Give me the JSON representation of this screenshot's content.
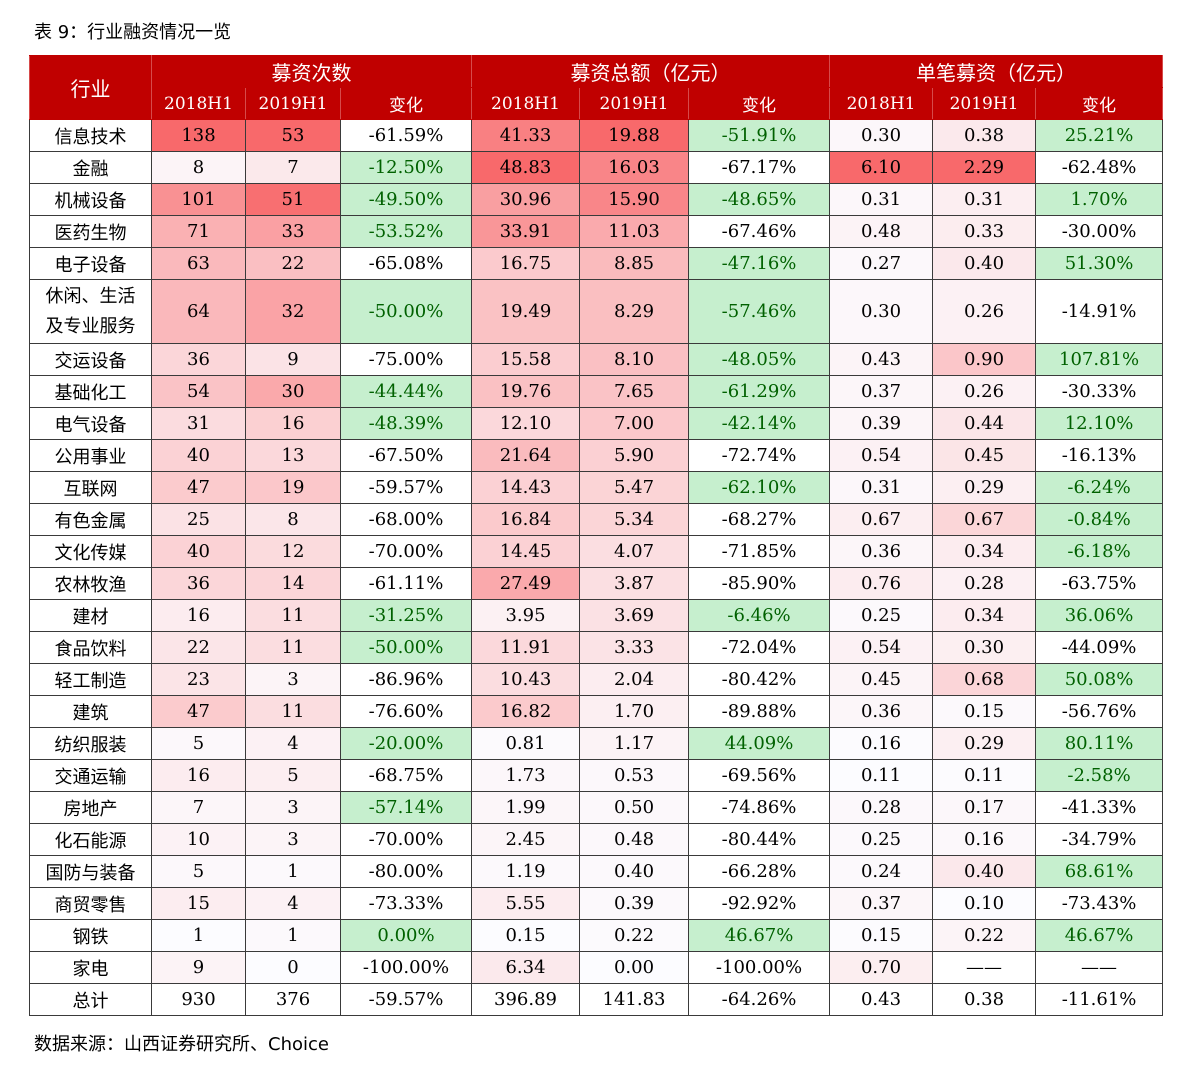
{
  "title": "表 9：行业融资情况一览",
  "source": "数据来源：山西证券研究所、Choice",
  "colors": {
    "header": "#C00000",
    "heat_max": "#F8696B",
    "heat_min": "#FCFCFF",
    "good_fill": "#C6EFCE",
    "good_text": "#006100"
  },
  "header": {
    "industry": "行业",
    "groups": [
      "募资次数",
      "募资总额（亿元）",
      "单笔募资（亿元）"
    ],
    "sub": [
      "2018H1",
      "2019H1",
      "变化",
      "2018H1",
      "2019H1",
      "变化",
      "2018H1",
      "2019H1",
      "变化"
    ]
  },
  "rows": [
    [
      "信息技术",
      "138",
      "53",
      "-61.59%",
      "41.33",
      "19.88",
      "-51.91%",
      "0.30",
      "0.38",
      "25.21%"
    ],
    [
      "金融",
      "8",
      "7",
      "-12.50%",
      "48.83",
      "16.03",
      "-67.17%",
      "6.10",
      "2.29",
      "-62.48%"
    ],
    [
      "机械设备",
      "101",
      "51",
      "-49.50%",
      "30.96",
      "15.90",
      "-48.65%",
      "0.31",
      "0.31",
      "1.70%"
    ],
    [
      "医药生物",
      "71",
      "33",
      "-53.52%",
      "33.91",
      "11.03",
      "-67.46%",
      "0.48",
      "0.33",
      "-30.00%"
    ],
    [
      "电子设备",
      "63",
      "22",
      "-65.08%",
      "16.75",
      "8.85",
      "-47.16%",
      "0.27",
      "0.40",
      "51.30%"
    ],
    [
      "休闲、生活及专业服务",
      "64",
      "32",
      "-50.00%",
      "19.49",
      "8.29",
      "-57.46%",
      "0.30",
      "0.26",
      "-14.91%"
    ],
    [
      "交运设备",
      "36",
      "9",
      "-75.00%",
      "15.58",
      "8.10",
      "-48.05%",
      "0.43",
      "0.90",
      "107.81%"
    ],
    [
      "基础化工",
      "54",
      "30",
      "-44.44%",
      "19.76",
      "7.65",
      "-61.29%",
      "0.37",
      "0.26",
      "-30.33%"
    ],
    [
      "电气设备",
      "31",
      "16",
      "-48.39%",
      "12.10",
      "7.00",
      "-42.14%",
      "0.39",
      "0.44",
      "12.10%"
    ],
    [
      "公用事业",
      "40",
      "13",
      "-67.50%",
      "21.64",
      "5.90",
      "-72.74%",
      "0.54",
      "0.45",
      "-16.13%"
    ],
    [
      "互联网",
      "47",
      "19",
      "-59.57%",
      "14.43",
      "5.47",
      "-62.10%",
      "0.31",
      "0.29",
      "-6.24%"
    ],
    [
      "有色金属",
      "25",
      "8",
      "-68.00%",
      "16.84",
      "5.34",
      "-68.27%",
      "0.67",
      "0.67",
      "-0.84%"
    ],
    [
      "文化传媒",
      "40",
      "12",
      "-70.00%",
      "14.45",
      "4.07",
      "-71.85%",
      "0.36",
      "0.34",
      "-6.18%"
    ],
    [
      "农林牧渔",
      "36",
      "14",
      "-61.11%",
      "27.49",
      "3.87",
      "-85.90%",
      "0.76",
      "0.28",
      "-63.75%"
    ],
    [
      "建材",
      "16",
      "11",
      "-31.25%",
      "3.95",
      "3.69",
      "-6.46%",
      "0.25",
      "0.34",
      "36.06%"
    ],
    [
      "食品饮料",
      "22",
      "11",
      "-50.00%",
      "11.91",
      "3.33",
      "-72.04%",
      "0.54",
      "0.30",
      "-44.09%"
    ],
    [
      "轻工制造",
      "23",
      "3",
      "-86.96%",
      "10.43",
      "2.04",
      "-80.42%",
      "0.45",
      "0.68",
      "50.08%"
    ],
    [
      "建筑",
      "47",
      "11",
      "-76.60%",
      "16.82",
      "1.70",
      "-89.88%",
      "0.36",
      "0.15",
      "-56.76%"
    ],
    [
      "纺织服装",
      "5",
      "4",
      "-20.00%",
      "0.81",
      "1.17",
      "44.09%",
      "0.16",
      "0.29",
      "80.11%"
    ],
    [
      "交通运输",
      "16",
      "5",
      "-68.75%",
      "1.73",
      "0.53",
      "-69.56%",
      "0.11",
      "0.11",
      "-2.58%"
    ],
    [
      "房地产",
      "7",
      "3",
      "-57.14%",
      "1.99",
      "0.50",
      "-74.86%",
      "0.28",
      "0.17",
      "-41.33%"
    ],
    [
      "化石能源",
      "10",
      "3",
      "-70.00%",
      "2.45",
      "0.48",
      "-80.44%",
      "0.25",
      "0.16",
      "-34.79%"
    ],
    [
      "国防与装备",
      "5",
      "1",
      "-80.00%",
      "1.19",
      "0.40",
      "-66.28%",
      "0.24",
      "0.40",
      "68.61%"
    ],
    [
      "商贸零售",
      "15",
      "4",
      "-73.33%",
      "5.55",
      "0.39",
      "-92.92%",
      "0.37",
      "0.10",
      "-73.43%"
    ],
    [
      "钢铁",
      "1",
      "1",
      "0.00%",
      "0.15",
      "0.22",
      "46.67%",
      "0.15",
      "0.22",
      "46.67%"
    ],
    [
      "家电",
      "9",
      "0",
      "-100.00%",
      "6.34",
      "0.00",
      "-100.00%",
      "0.70",
      "——",
      "——"
    ]
  ],
  "total": [
    "总计",
    "930",
    "376",
    "-59.57%",
    "396.89",
    "141.83",
    "-64.26%",
    "0.43",
    "0.38",
    "-11.61%"
  ]
}
